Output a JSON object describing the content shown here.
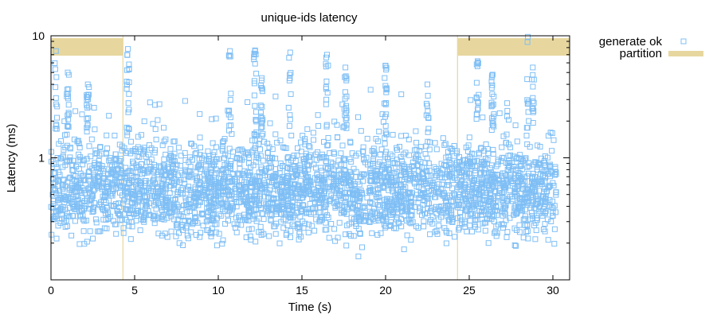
{
  "chart_data": {
    "type": "scatter",
    "title": "unique-ids latency",
    "xlabel": "Time (s)",
    "ylabel": "Latency (ms)",
    "xlim": [
      0,
      31
    ],
    "ylim": [
      0.1,
      10
    ],
    "yscale": "log",
    "x_ticks": [
      0,
      5,
      10,
      15,
      20,
      25,
      30
    ],
    "x_tick_labels": [
      "0",
      "5",
      "10",
      "15",
      "20",
      "25",
      "30"
    ],
    "y_ticks": [
      1,
      10
    ],
    "y_tick_labels": [
      "1",
      "10"
    ],
    "grid": false,
    "legend": "outside-top-right",
    "series": [
      {
        "name": "generate ok",
        "color": "#7fbff5",
        "marker": "open-square",
        "typical_range_ms": [
          0.2,
          1.5
        ],
        "spikes": [
          {
            "x": 0.3,
            "y": 7.5
          },
          {
            "x": 1.0,
            "y": 5.0
          },
          {
            "x": 2.2,
            "y": 4.0
          },
          {
            "x": 4.6,
            "y": 7.8
          },
          {
            "x": 10.7,
            "y": 7.5
          },
          {
            "x": 12.2,
            "y": 7.6
          },
          {
            "x": 12.6,
            "y": 4.5
          },
          {
            "x": 14.3,
            "y": 7.3
          },
          {
            "x": 16.5,
            "y": 7.0
          },
          {
            "x": 17.6,
            "y": 5.5
          },
          {
            "x": 20.0,
            "y": 5.7
          },
          {
            "x": 22.5,
            "y": 4.0
          },
          {
            "x": 25.5,
            "y": 6.2
          },
          {
            "x": 26.4,
            "y": 4.8
          },
          {
            "x": 28.5,
            "y": 9.8
          },
          {
            "x": 28.8,
            "y": 5.5
          }
        ]
      }
    ],
    "partitions": {
      "name": "partition",
      "color": "#e7d79e",
      "intervals": [
        [
          0.0,
          4.3
        ],
        [
          24.3,
          31.0
        ]
      ]
    }
  }
}
